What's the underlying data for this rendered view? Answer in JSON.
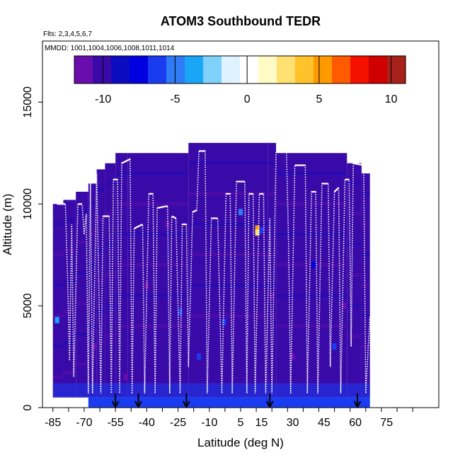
{
  "chart_data": {
    "type": "heatmap",
    "title": "ATOM3 Southbound TEDR",
    "subtitle_flights": "Flts: 2,3,4,5,6,7",
    "subtitle_dates": "MMDD: 1001,1004,1006,1008,1011,1014",
    "xlabel": "Latitude (deg N)",
    "ylabel": "Altitude (m)",
    "xlim": [
      -90,
      100
    ],
    "ylim": [
      0,
      18000
    ],
    "x_ticks": [
      -85,
      -70,
      -55,
      -40,
      -25,
      -10,
      5,
      15,
      30,
      45,
      60,
      75
    ],
    "x_tick_labels": [
      "-85",
      "-70",
      "-55",
      "-40",
      "-25",
      "-10",
      "5",
      "15",
      "30",
      "45",
      "60",
      "75"
    ],
    "y_ticks": [
      0,
      5000,
      10000,
      15000
    ],
    "y_tick_labels": [
      "0",
      "5000",
      "10000",
      "15000"
    ],
    "colorbar": {
      "range": [
        -12,
        11
      ],
      "ticks": [
        -10,
        -5,
        0,
        5,
        10
      ],
      "tick_labels": [
        "-10",
        "-5",
        "0",
        "5",
        "10"
      ],
      "colors": [
        "#6a0dad",
        "#3a0aa8",
        "#0b0bbf",
        "#0000e0",
        "#1a3cf0",
        "#2f7af5",
        "#19a6f7",
        "#7fd0fb",
        "#dff2ff",
        "#ffffff",
        "#fffbc4",
        "#ffe070",
        "#ffc22a",
        "#ff9a00",
        "#ff5a00",
        "#f51000",
        "#d00000",
        "#a8201a"
      ]
    },
    "envelope_tops": [
      {
        "x0": -85,
        "x1": -80,
        "alt": 10000
      },
      {
        "x0": -80,
        "x1": -74,
        "alt": 10200
      },
      {
        "x0": -74,
        "x1": -68,
        "alt": 10600
      },
      {
        "x0": -68,
        "x1": -64,
        "alt": 11000
      },
      {
        "x0": -64,
        "x1": -60,
        "alt": 11700
      },
      {
        "x0": -60,
        "x1": -55,
        "alt": 12000
      },
      {
        "x0": -55,
        "x1": -49,
        "alt": 12500
      },
      {
        "x0": -49,
        "x1": -20,
        "alt": 12500
      },
      {
        "x0": -20,
        "x1": 18,
        "alt": 13000
      },
      {
        "x0": 18,
        "x1": 22,
        "alt": 13000
      },
      {
        "x0": 22,
        "x1": 56,
        "alt": 12500
      },
      {
        "x0": 56,
        "x1": 63,
        "alt": 12000
      },
      {
        "x0": 63,
        "x1": 67,
        "alt": 11500
      }
    ],
    "envelope_bottom": 500,
    "background_value": -9.5,
    "cells": [
      {
        "lat": -83,
        "alt": 4300,
        "value": -4
      },
      {
        "lat": 5,
        "alt": 9600,
        "value": -4.5
      },
      {
        "lat": 13,
        "alt": 8800,
        "value": 5
      },
      {
        "lat": 13,
        "alt": 8600,
        "value": 2.5
      },
      {
        "lat": 15,
        "alt": 8700,
        "value": -6
      },
      {
        "lat": -24,
        "alt": 4700,
        "value": -6
      },
      {
        "lat": -3,
        "alt": 4200,
        "value": -6
      },
      {
        "lat": 50,
        "alt": 3000,
        "value": -6
      },
      {
        "lat": -15,
        "alt": 2500,
        "value": -6
      },
      {
        "lat": 40,
        "alt": 7000,
        "value": -7
      },
      {
        "lat": -40,
        "alt": 6000,
        "value": -11
      },
      {
        "lat": -65,
        "alt": 3000,
        "value": -11
      },
      {
        "lat": -50,
        "alt": 1500,
        "value": -11
      },
      {
        "lat": 30,
        "alt": 2500,
        "value": -11
      },
      {
        "lat": 55,
        "alt": 5000,
        "value": -11
      },
      {
        "lat": -30,
        "alt": 9000,
        "value": -11
      },
      {
        "lat": 20,
        "alt": 5500,
        "value": -11
      }
    ],
    "flight_tracks": [
      [
        [
          -83,
          10000
        ],
        [
          -79,
          10000
        ],
        [
          -78,
          6500
        ],
        [
          -77,
          2300
        ],
        [
          -76,
          9000
        ],
        [
          -75,
          1500
        ],
        [
          -73,
          10000
        ],
        [
          -71,
          10000
        ],
        [
          -70,
          8500
        ],
        [
          -69,
          9500
        ],
        [
          -68,
          700
        ]
      ],
      [
        [
          -68,
          700
        ],
        [
          -67,
          11300
        ],
        [
          -66,
          700
        ],
        [
          -64,
          11500
        ],
        [
          -62,
          700
        ],
        [
          -61,
          9400
        ],
        [
          -58,
          9400
        ],
        [
          -57,
          700
        ],
        [
          -56,
          11200
        ],
        [
          -54,
          11200
        ],
        [
          -53,
          700
        ],
        [
          -52,
          12000
        ],
        [
          -48,
          12200
        ],
        [
          -47,
          700
        ]
      ],
      [
        [
          -47,
          700
        ],
        [
          -46,
          8800
        ],
        [
          -42,
          9000
        ],
        [
          -41,
          700
        ],
        [
          -39,
          10500
        ],
        [
          -37,
          10500
        ],
        [
          -36,
          700
        ],
        [
          -35,
          9800
        ],
        [
          -30,
          9900
        ],
        [
          -29,
          700
        ],
        [
          -28,
          9400
        ],
        [
          -26,
          9300
        ],
        [
          -24,
          700
        ],
        [
          -23,
          9000
        ],
        [
          -21,
          9000
        ],
        [
          -20,
          2000
        ]
      ],
      [
        [
          -20,
          2000
        ],
        [
          -18,
          9600
        ],
        [
          -16,
          9700
        ],
        [
          -15,
          12600
        ],
        [
          -12,
          12600
        ],
        [
          -11,
          700
        ],
        [
          -9,
          9300
        ],
        [
          -6,
          9300
        ],
        [
          -4,
          700
        ],
        [
          -2,
          10500
        ],
        [
          0,
          10500
        ],
        [
          1,
          700
        ],
        [
          3,
          11100
        ],
        [
          7,
          11100
        ],
        [
          8,
          700
        ],
        [
          9,
          10500
        ],
        [
          11,
          10500
        ],
        [
          12,
          700
        ],
        [
          14,
          10500
        ],
        [
          16,
          10500
        ],
        [
          17,
          700
        ],
        [
          19,
          9300
        ],
        [
          20,
          700
        ],
        [
          22,
          12600
        ],
        [
          27,
          12600
        ],
        [
          28,
          8000
        ],
        [
          29,
          700
        ]
      ],
      [
        [
          29,
          700
        ],
        [
          31,
          11900
        ],
        [
          36,
          11900
        ],
        [
          37,
          700
        ],
        [
          39,
          10600
        ],
        [
          41,
          10600
        ],
        [
          42,
          700
        ],
        [
          44,
          11000
        ],
        [
          47,
          11000
        ],
        [
          48,
          2000
        ],
        [
          50,
          10600
        ],
        [
          52,
          10800
        ],
        [
          53,
          700
        ],
        [
          55,
          11200
        ],
        [
          57,
          11200
        ],
        [
          58,
          3000
        ],
        [
          59,
          12000
        ],
        [
          64,
          11900
        ],
        [
          65,
          700
        ],
        [
          67,
          4500
        ]
      ]
    ],
    "arrow_latitudes": [
      -55,
      -44,
      -21,
      19,
      61
    ]
  }
}
